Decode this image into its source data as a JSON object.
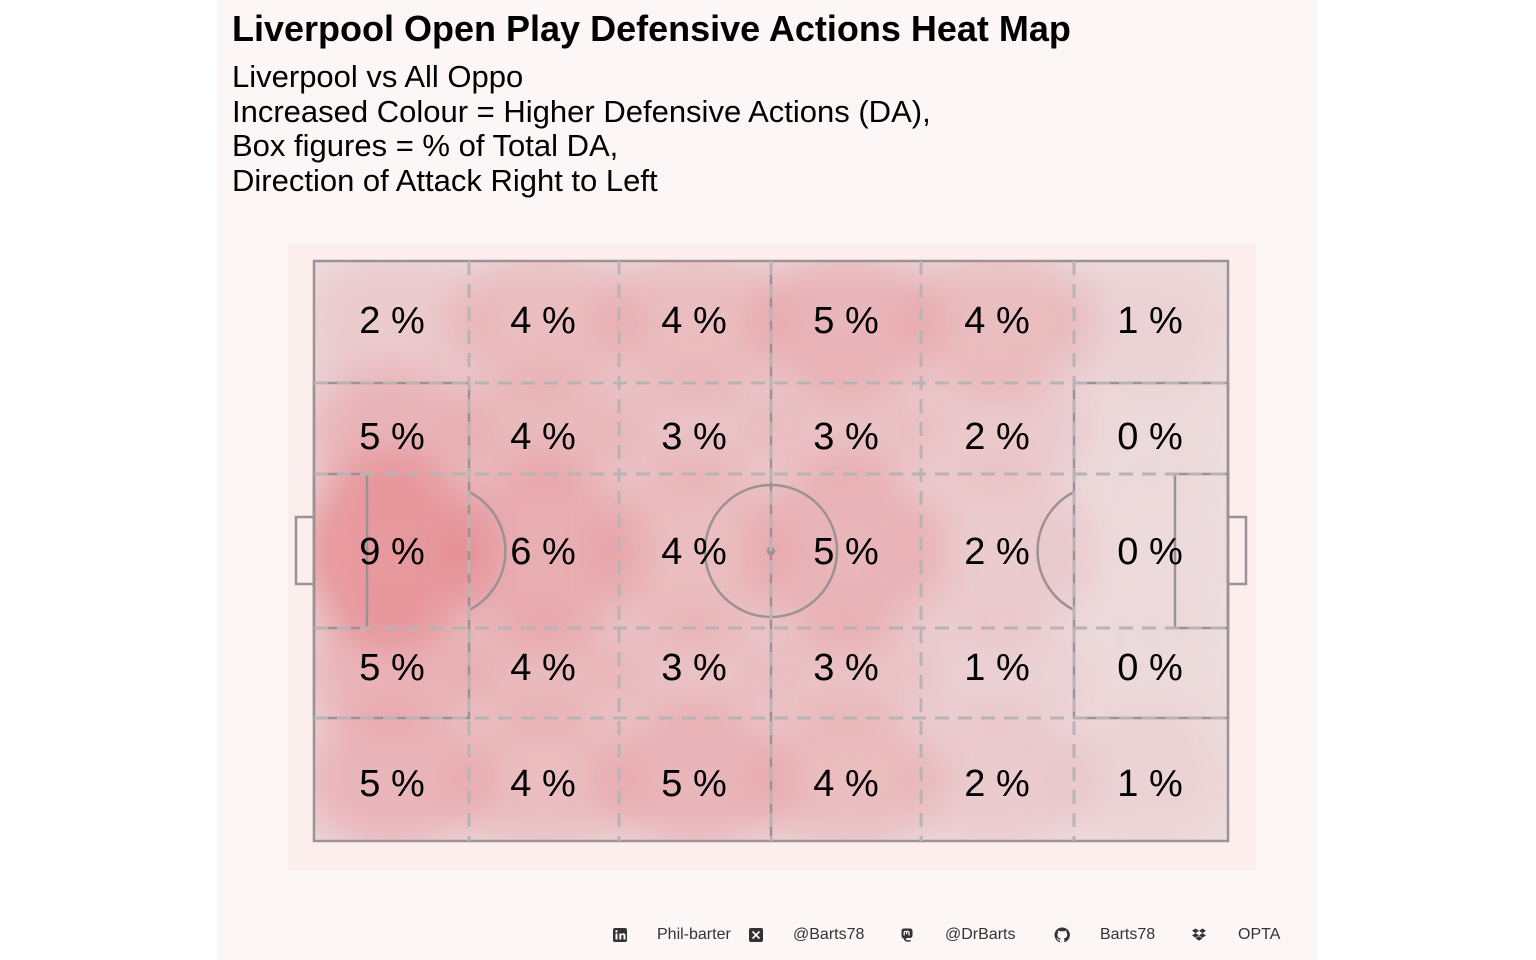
{
  "title": "Liverpool Open Play Defensive Actions Heat Map",
  "subtitle_lines": [
    "Liverpool vs All Oppo",
    "Increased Colour = Higher Defensive Actions (DA),",
    "Box figures = % of Total DA,",
    "Direction of Attack Right to Left"
  ],
  "colors": {
    "background": "#fdf6f6",
    "pitch_bg": "#fdeeee",
    "pitch_fill": "#ede1e3",
    "heat": "#e3747a",
    "lines": "#9c9195",
    "zone_lines": "#b9b3b5"
  },
  "chart_data": {
    "type": "heatmap",
    "title": "Liverpool Open Play Defensive Actions Heat Map",
    "columns": 6,
    "rows": 5,
    "value_unit": "%",
    "grid_values": [
      [
        2,
        4,
        4,
        5,
        4,
        1
      ],
      [
        5,
        4,
        3,
        3,
        2,
        0
      ],
      [
        9,
        6,
        4,
        5,
        2,
        0
      ],
      [
        5,
        4,
        3,
        3,
        1,
        0
      ],
      [
        5,
        4,
        5,
        4,
        2,
        1
      ]
    ],
    "direction_of_attack": "Right to Left"
  },
  "footer": {
    "items": [
      {
        "icon": "linkedin-icon",
        "text": "Phil-barter"
      },
      {
        "icon": "x-icon",
        "text": "@Barts78"
      },
      {
        "icon": "mastodon-icon",
        "text": "@DrBarts"
      },
      {
        "icon": "github-icon",
        "text": "Barts78"
      },
      {
        "icon": "dropbox-icon",
        "text": "OPTA"
      }
    ]
  }
}
